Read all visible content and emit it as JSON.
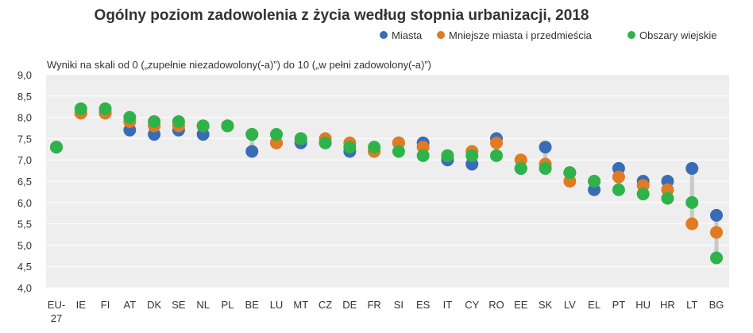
{
  "chart_data": {
    "type": "scatter",
    "title": "Ogólny poziom zadowolenia z życia według stopnia urbanizacji, 2018",
    "subtitle": "Wyniki na skali od 0 („zupełnie niezadowolony(-a)”) do 10 („w pełni zadowolony(-a)”)",
    "legend_position": "top-right",
    "ylim": [
      4.0,
      9.0
    ],
    "yticks": [
      "9,0",
      "8,5",
      "8,0",
      "7,5",
      "7,0",
      "6,5",
      "6,0",
      "5,5",
      "5,0",
      "4,5",
      "4,0"
    ],
    "grid": "horizontal",
    "categories": [
      "EU-27",
      "IE",
      "FI",
      "AT",
      "DK",
      "SE",
      "NL",
      "PL",
      "BE",
      "LU",
      "MT",
      "CZ",
      "DE",
      "FR",
      "SI",
      "ES",
      "IT",
      "CY",
      "RO",
      "EE",
      "SK",
      "LV",
      "EL",
      "PT",
      "HU",
      "HR",
      "LT",
      "BG"
    ],
    "series": [
      {
        "name": "Miasta",
        "color": "#3a6cb6",
        "values": [
          7.3,
          8.1,
          8.1,
          7.7,
          7.6,
          7.7,
          7.6,
          7.8,
          7.2,
          7.4,
          7.4,
          7.4,
          7.2,
          7.2,
          7.4,
          7.4,
          7.0,
          6.9,
          7.5,
          6.8,
          7.3,
          6.7,
          6.3,
          6.8,
          6.5,
          6.5,
          6.8,
          5.7
        ]
      },
      {
        "name": "Mniejsze miasta i przedmieścia",
        "color": "#e07b21",
        "values": [
          7.3,
          8.1,
          8.1,
          7.9,
          7.8,
          7.8,
          7.8,
          7.8,
          7.6,
          7.4,
          7.5,
          7.5,
          7.4,
          7.2,
          7.4,
          7.3,
          7.1,
          7.2,
          7.4,
          7.0,
          6.9,
          6.5,
          6.5,
          6.6,
          6.4,
          6.3,
          5.5,
          5.3
        ]
      },
      {
        "name": "Obszary wiejskie",
        "color": "#2db34a",
        "values": [
          7.3,
          8.2,
          8.2,
          8.0,
          7.9,
          7.9,
          7.8,
          7.8,
          7.6,
          7.6,
          7.5,
          7.4,
          7.3,
          7.3,
          7.2,
          7.1,
          7.1,
          7.1,
          7.1,
          6.8,
          6.8,
          6.7,
          6.5,
          6.3,
          6.2,
          6.1,
          6.0,
          4.7
        ]
      }
    ]
  }
}
